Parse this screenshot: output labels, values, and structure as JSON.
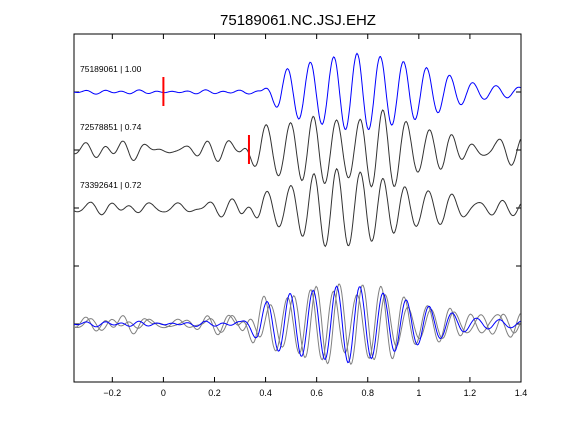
{
  "chart_data": {
    "type": "line",
    "title": "75189061.NC.JSJ.EHZ",
    "xlabel": "",
    "ylabel": "",
    "xlim": [
      -0.35,
      1.4
    ],
    "ylim": [
      -6,
      0
    ],
    "x_ticks": [
      -0.2,
      0,
      0.2,
      0.4,
      0.6,
      0.8,
      1,
      1.2,
      1.4
    ],
    "x_tick_labels": [
      "−0.2",
      "0",
      "0.2",
      "0.4",
      "0.6",
      "0.8",
      "1",
      "1.2",
      "1.4"
    ],
    "y_ticks_count": 7,
    "grid": false,
    "colors": {
      "reference": "#0000ff",
      "match": "#333333",
      "overlay_gray": "#808080",
      "pick": "#ff0000"
    },
    "traces": [
      {
        "label": "75189061 | 1.00",
        "color": "#0000ff",
        "pick_time": 0.0,
        "arrival": 0.38,
        "noise": 0.06,
        "seed": 3
      },
      {
        "label": "72578851 | 0.74",
        "color": "#333333",
        "pick_time": 0.335,
        "arrival": 0.3,
        "noise": 0.32,
        "seed": 7
      },
      {
        "label": "73392641 | 0.72",
        "color": "#333333",
        "pick_time": null,
        "arrival": 0.3,
        "noise": 0.28,
        "seed": 11
      }
    ],
    "overlay": {
      "members": [
        {
          "color": "#808080",
          "seed": 7,
          "noise": 0.3,
          "shift": -0.01
        },
        {
          "color": "#808080",
          "seed": 11,
          "noise": 0.26,
          "shift": 0.01
        },
        {
          "color": "#0000ff",
          "seed": 3,
          "noise": 0.08,
          "shift": 0.0
        }
      ]
    }
  }
}
